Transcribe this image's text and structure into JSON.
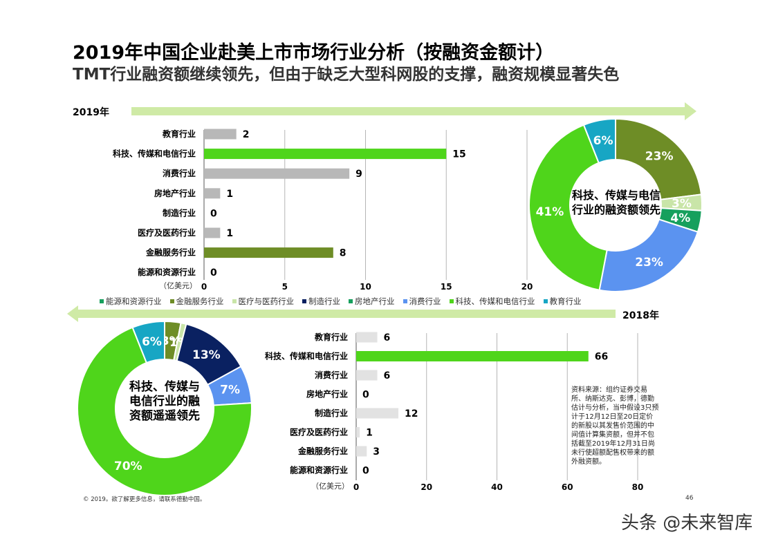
{
  "title": "2019年中国企业赴美上市市场行业分析（按融资金额计）",
  "subtitle": "TMT行业融资额继续领先，但由于缺乏大型科网股的支撑，融资规模显著失色",
  "year_2019": "2019年",
  "year_2018": "2018年",
  "legend": [
    {
      "label": "能源和资源行业",
      "color": "#16a05d"
    },
    {
      "label": "金融服务行业",
      "color": "#6e8d26"
    },
    {
      "label": "医疗与医药行业",
      "color": "#c9e5a8"
    },
    {
      "label": "制造行业",
      "color": "#0a2161"
    },
    {
      "label": "房地产行业",
      "color": "#16a05d"
    },
    {
      "label": "消费行业",
      "color": "#5b93f0"
    },
    {
      "label": "科技、传媒和电信行业",
      "color": "#4fd51b"
    },
    {
      "label": "教育行业",
      "color": "#17a6c4"
    }
  ],
  "donut_2019_center": "科技、传媒与电信行业的融资额领先",
  "donut_2018_center": "科技、传媒与电信行业的融资额遥遥领先",
  "source": "资料来源：组约证券交易所、纳斯达克、彭博，德勤估计与分析，当中假设3只预计于12月12日至20日定价的新股以其发售价范围的中间值计算集资额，但并不包括截至2019年12月31日尚未行使超额配售权带来的额外融资额。",
  "copyright": "© 2019。欲了解更多信息，请联系德勤中国。",
  "page_number": "46",
  "watermark": "头条 @未来智库",
  "chart_data": [
    {
      "type": "bar",
      "year": "2019年",
      "categories": [
        "教育行业",
        "科技、传媒和电信行业",
        "消费行业",
        "房地产行业",
        "制造行业",
        "医疗及医药行业",
        "金融服务行业",
        "能源和资源行业"
      ],
      "values": [
        2,
        15,
        9,
        1,
        0,
        1,
        8,
        0
      ],
      "colors": [
        "#b8b8b8",
        "#4fd51b",
        "#b8b8b8",
        "#b8b8b8",
        "#b8b8b8",
        "#b8b8b8",
        "#6e8d26",
        "#b8b8b8"
      ],
      "xlabel": "（亿美元）",
      "xlim": [
        0,
        20
      ],
      "xticks": [
        0,
        5,
        10,
        15,
        20
      ],
      "grid": true
    },
    {
      "type": "pie",
      "year": "2019年",
      "donut": true,
      "slices": [
        {
          "sector": "金融服务行业",
          "value": 23,
          "label": "23%",
          "color": "#6e8d26"
        },
        {
          "sector": "医疗与医药行业",
          "value": 3,
          "label": "3%",
          "color": "#c9e5a8"
        },
        {
          "sector": "房地产行业",
          "value": 4,
          "label": "4%",
          "color": "#16a05d"
        },
        {
          "sector": "消费行业",
          "value": 23,
          "label": "23%",
          "color": "#5b93f0"
        },
        {
          "sector": "科技、传媒和电信行业",
          "value": 41,
          "label": "41%",
          "color": "#4fd51b"
        },
        {
          "sector": "教育行业",
          "value": 6,
          "label": "6%",
          "color": "#17a6c4"
        }
      ]
    },
    {
      "type": "bar",
      "year": "2018年",
      "categories": [
        "教育行业",
        "科技、传媒和电信行业",
        "消费行业",
        "房地产行业",
        "制造行业",
        "医疗及医药行业",
        "金融服务行业",
        "能源和资源行业"
      ],
      "values": [
        6,
        66,
        6,
        0,
        12,
        1,
        3,
        0
      ],
      "colors": [
        "#e2e2e2",
        "#4fd51b",
        "#e2e2e2",
        "#e2e2e2",
        "#e2e2e2",
        "#e2e2e2",
        "#e2e2e2",
        "#e2e2e2"
      ],
      "xlabel": "（亿美元）",
      "xlim": [
        0,
        80
      ],
      "xticks": [
        0,
        20,
        40,
        60,
        80
      ],
      "grid": true
    },
    {
      "type": "pie",
      "year": "2018年",
      "donut": true,
      "slices": [
        {
          "sector": "金融服务行业",
          "value": 3,
          "label": "3%",
          "color": "#6e8d26"
        },
        {
          "sector": "医疗与医药行业",
          "value": 1,
          "label": "1%",
          "color": "#c9e5a8"
        },
        {
          "sector": "制造行业",
          "value": 13,
          "label": "13%",
          "color": "#0a2161"
        },
        {
          "sector": "消费行业",
          "value": 7,
          "label": "7%",
          "color": "#5b93f0"
        },
        {
          "sector": "科技、传媒和电信行业",
          "value": 70,
          "label": "70%",
          "color": "#4fd51b"
        },
        {
          "sector": "教育行业",
          "value": 6,
          "label": "6%",
          "color": "#17a6c4"
        }
      ]
    }
  ]
}
